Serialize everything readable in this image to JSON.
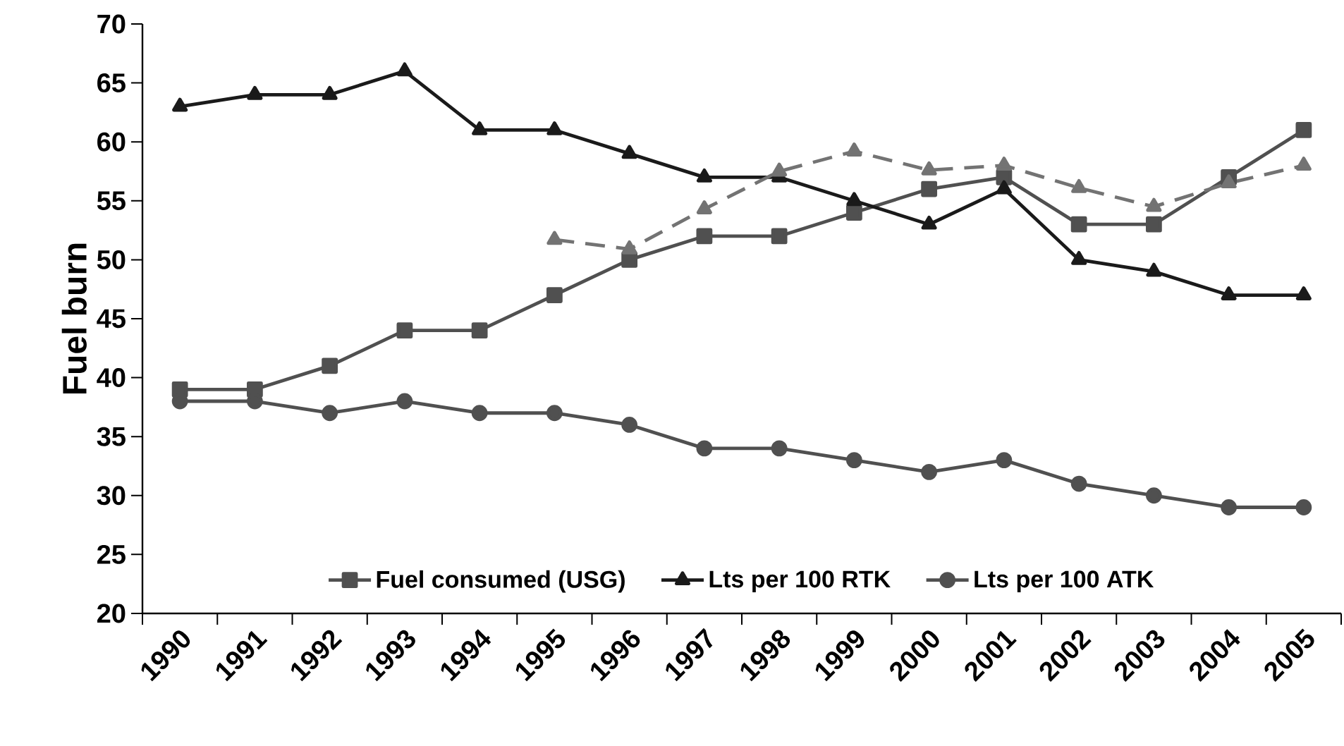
{
  "chart_data": {
    "type": "line",
    "ylabel": "Fuel burn",
    "categories": [
      "1990",
      "1991",
      "1992",
      "1993",
      "1994",
      "1995",
      "1996",
      "1997",
      "1998",
      "1999",
      "2000",
      "2001",
      "2002",
      "2003",
      "2004",
      "2005"
    ],
    "ylim": [
      20,
      70
    ],
    "yticks": [
      20,
      25,
      30,
      35,
      40,
      45,
      50,
      55,
      60,
      65,
      70
    ],
    "legend": "bottom",
    "series": [
      {
        "name": "Fuel consumed (USG)",
        "color": "#505050",
        "marker": "square",
        "line_style": "solid",
        "values": [
          39,
          39,
          41,
          44,
          44,
          47,
          50,
          52,
          52,
          54,
          56,
          57,
          53,
          53,
          57,
          61
        ]
      },
      {
        "name": "Lts per 100 RTK",
        "color": "#1a1a1a",
        "marker": "triangle",
        "line_style": "solid",
        "values": [
          63,
          64,
          64,
          66,
          61,
          61,
          59,
          57,
          57,
          55,
          53,
          56,
          50,
          49,
          47,
          47
        ]
      },
      {
        "name": "Lts per 100 ATK",
        "color": "#505050",
        "marker": "circle",
        "line_style": "solid",
        "values": [
          38,
          38,
          37,
          38,
          37,
          37,
          36,
          34,
          34,
          33,
          32,
          33,
          31,
          30,
          29,
          29
        ]
      },
      {
        "color": "#737373",
        "marker": "triangle",
        "line_style": "dashed",
        "values": [
          null,
          null,
          null,
          null,
          null,
          51.7,
          50.9,
          54.3,
          57.5,
          59.2,
          57.6,
          58.0,
          56.1,
          54.5,
          56.5,
          58.0
        ]
      }
    ]
  }
}
